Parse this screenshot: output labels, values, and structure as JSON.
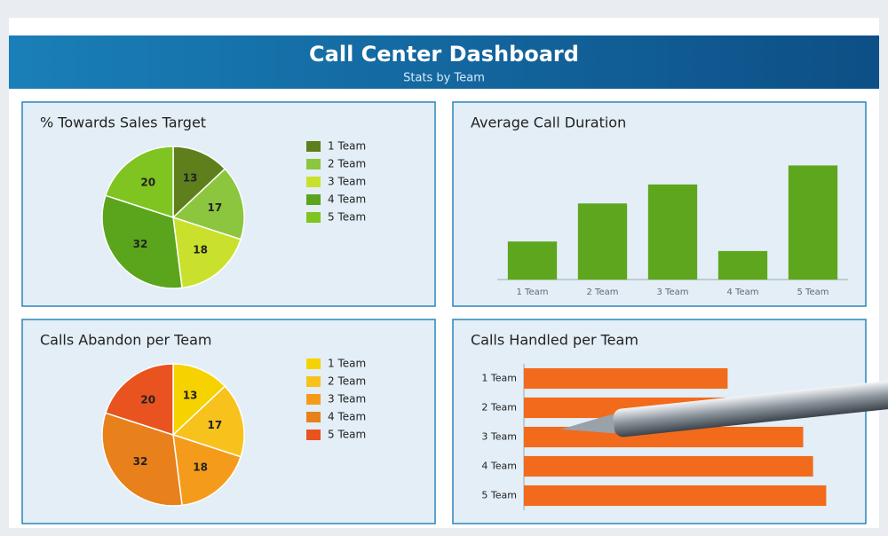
{
  "header": {
    "title": "Call Center Dashboard",
    "subtitle": "Stats by Team"
  },
  "chart_data": [
    {
      "type": "pie",
      "title": "% Towards Sales Target",
      "categories": [
        "1 Team",
        "2 Team",
        "3 Team",
        "4 Team",
        "5 Team"
      ],
      "values": [
        13,
        17,
        18,
        32,
        20
      ],
      "colors": [
        "#5f7f1c",
        "#8cc63f",
        "#c9e12c",
        "#5aa51c",
        "#7fc421"
      ]
    },
    {
      "type": "bar",
      "title": "Average Call Duration",
      "categories": [
        "1 Team",
        "2 Team",
        "3 Team",
        "4 Team",
        "5 Team"
      ],
      "values": [
        2,
        4,
        5,
        1.5,
        6
      ],
      "ylim": [
        0,
        7
      ],
      "color": "#5ea61e"
    },
    {
      "type": "pie",
      "title": "Calls Abandon per Team",
      "categories": [
        "1 Team",
        "2 Team",
        "3 Team",
        "4 Team",
        "5 Team"
      ],
      "values": [
        13,
        17,
        18,
        32,
        20
      ],
      "colors": [
        "#f6d200",
        "#f8c21d",
        "#f59b1c",
        "#e8801b",
        "#e9531f"
      ]
    },
    {
      "type": "hbar",
      "title": "Calls Handled per Team",
      "categories": [
        "1 Team",
        "2 Team",
        "3 Team",
        "4 Team",
        "5 Team"
      ],
      "values": [
        62,
        78,
        85,
        88,
        92
      ],
      "xlim": [
        0,
        100
      ],
      "color": "#f26a1b"
    }
  ]
}
